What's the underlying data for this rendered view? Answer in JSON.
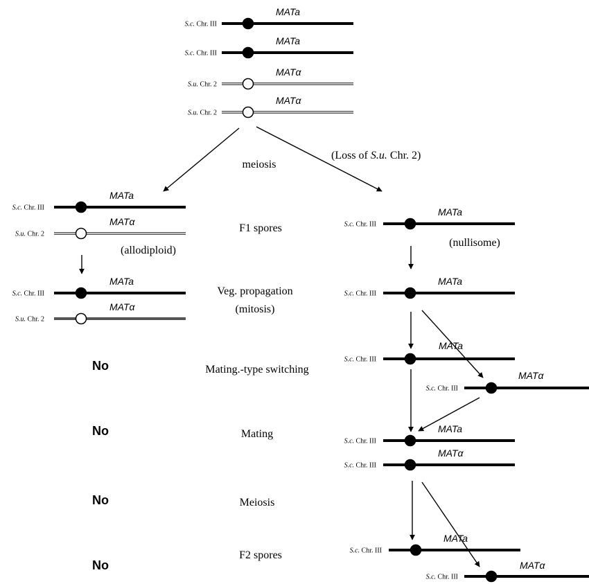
{
  "colors": {
    "sc_line": "#000000",
    "su_line": "#555555",
    "su_centromere": "#ffffff",
    "background": "#ffffff"
  },
  "icons": {
    "sc_centromere": "filled-circle",
    "su_centromere": "open-circle",
    "arrowhead": "triangle"
  },
  "parental": [
    {
      "label": "S.c. Chr. III",
      "gene": "MATa",
      "species": "sc"
    },
    {
      "label": "S.c. Chr. III",
      "gene": "MATa",
      "species": "sc"
    },
    {
      "label": "S.u. Chr. 2",
      "gene": "MATα",
      "species": "su"
    },
    {
      "label": "S.u. Chr. 2",
      "gene": "MATα",
      "species": "su"
    }
  ],
  "labels": {
    "meiosis_top": "meiosis",
    "loss": "(Loss of S.u. Chr. 2)",
    "f1_spores": "F1 spores",
    "allodiploid": "(allodiploid)",
    "nullisome": "(nullisome)",
    "veg_prop_1": "Veg. propagation",
    "veg_prop_2": "(mitosis)",
    "mating_type_switching": "Mating.-type switching",
    "mating": "Mating",
    "meiosis": "Meiosis",
    "f2_spores": "F2 spores",
    "no": "No"
  },
  "left_branch": {
    "f1": [
      {
        "label": "S.c. Chr. III",
        "gene": "MATa",
        "species": "sc"
      },
      {
        "label": "S.u. Chr. 2",
        "gene": "MATα",
        "species": "su"
      }
    ],
    "veg": [
      {
        "label": "S.c. Chr. III",
        "gene": "MATa",
        "species": "sc"
      },
      {
        "label": "S.u. Chr. 2",
        "gene": "MATα",
        "species": "su-solid"
      }
    ]
  },
  "right_branch": {
    "f1": [
      {
        "label": "S.c. Chr. III",
        "gene": "MATa",
        "species": "sc"
      }
    ],
    "veg": [
      {
        "label": "S.c. Chr. III",
        "gene": "MATa",
        "species": "sc"
      }
    ],
    "switch": [
      {
        "label": "S.c. Chr. III",
        "gene": "MATa",
        "species": "sc"
      },
      {
        "label": "S.c. Chr. III",
        "gene": "MATα",
        "species": "sc"
      }
    ],
    "mated": [
      {
        "label": "S.c. Chr. III",
        "gene": "MATa",
        "species": "sc"
      },
      {
        "label": "S.c. Chr. III",
        "gene": "MATα",
        "species": "sc"
      }
    ],
    "f2": [
      {
        "label": "S.c. Chr. III",
        "gene": "MATa",
        "species": "sc"
      },
      {
        "label": "S.c. Chr. III",
        "gene": "MATα",
        "species": "sc"
      }
    ]
  }
}
